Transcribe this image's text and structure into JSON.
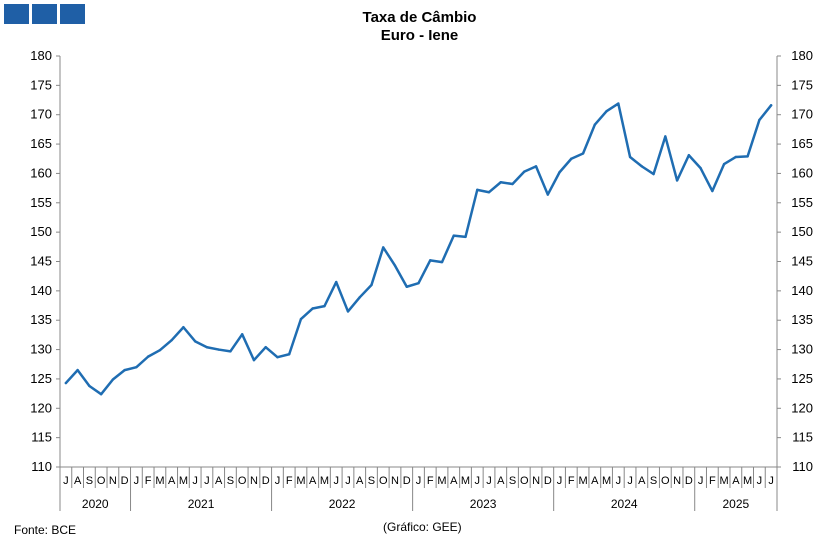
{
  "logo": {
    "icon": "bce-logo-squares"
  },
  "title_line1": "Taxa de Câmbio",
  "title_line2": "Euro - Iene",
  "source": "Fonte: BCE",
  "credit": "(Gráfico: GEE)",
  "colors": {
    "line": "#1f6db2",
    "axis": "#888888",
    "logo": "#1f5fa6"
  },
  "chart_data": {
    "type": "line",
    "title": "Taxa de Câmbio Euro - Iene",
    "xlabel": "",
    "ylabel": "",
    "ylim": [
      110,
      180
    ],
    "yticks": [
      110,
      115,
      120,
      125,
      130,
      135,
      140,
      145,
      150,
      155,
      160,
      165,
      170,
      175,
      180
    ],
    "grid": false,
    "legend": "none",
    "secondary_y_axis": true,
    "month_labels": [
      "J",
      "A",
      "S",
      "O",
      "N",
      "D",
      "J",
      "F",
      "M",
      "A",
      "M",
      "J",
      "J",
      "A",
      "S",
      "O",
      "N",
      "D",
      "J",
      "F",
      "M",
      "A",
      "M",
      "J",
      "J",
      "A",
      "S",
      "O",
      "N",
      "D",
      "J",
      "F",
      "M",
      "A",
      "M",
      "J",
      "J",
      "A",
      "S",
      "O",
      "N",
      "D",
      "J",
      "F",
      "M",
      "A",
      "M",
      "J",
      "J",
      "A",
      "S",
      "O",
      "N",
      "D",
      "J",
      "F",
      "M",
      "A",
      "M",
      "J",
      "J"
    ],
    "year_groups": [
      {
        "label": "2020",
        "months": 6
      },
      {
        "label": "2021",
        "months": 12
      },
      {
        "label": "2022",
        "months": 12
      },
      {
        "label": "2023",
        "months": 12
      },
      {
        "label": "2024",
        "months": 12
      },
      {
        "label": "2025",
        "months": 7
      }
    ],
    "series": [
      {
        "values": [
          124.3,
          126.5,
          123.8,
          122.4,
          124.9,
          126.5,
          127.0,
          128.8,
          129.9,
          131.6,
          133.8,
          131.4,
          130.4,
          130.0,
          129.7,
          132.6,
          128.2,
          130.4,
          128.7,
          129.2,
          135.2,
          137.0,
          137.4,
          141.5,
          136.5,
          138.9,
          141.0,
          147.4,
          144.3,
          140.7,
          141.3,
          145.2,
          144.9,
          149.4,
          149.2,
          157.2,
          156.8,
          158.5,
          158.2,
          160.3,
          161.2,
          156.4,
          160.2,
          162.5,
          163.4,
          168.3,
          170.6,
          171.9,
          162.8,
          161.2,
          159.9,
          166.3,
          158.8,
          163.1,
          160.9,
          157.0,
          161.6,
          162.8,
          162.9,
          169.1,
          171.6
        ]
      }
    ]
  }
}
